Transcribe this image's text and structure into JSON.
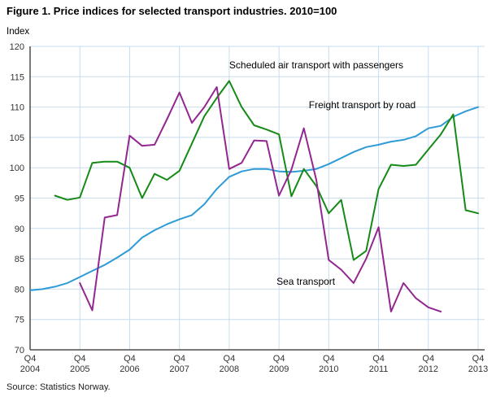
{
  "title": "Figure 1. Price indices for selected transport industries. 2010=100",
  "source": "Source: Statistics Norway.",
  "chart_data": {
    "type": "line",
    "title": "Price indices for selected transport industries. 2010=100",
    "xlabel": "",
    "ylabel": "Index",
    "ylim": [
      70,
      120
    ],
    "ytick_step": 5,
    "grid": true,
    "grid_color": "#c8dcec",
    "axis_color": "#4d4d4d",
    "legend_position": "inline-annotations",
    "x_unit": "quarter",
    "x_range": [
      "Q4 2004",
      "Q4 2013"
    ],
    "x_count": 37,
    "x_tick_every": 4,
    "x_tick_labels": [
      [
        "Q4",
        "2004"
      ],
      [
        "Q4",
        "2005"
      ],
      [
        "Q4",
        "2006"
      ],
      [
        "Q4",
        "2007"
      ],
      [
        "Q4",
        "2008"
      ],
      [
        "Q4",
        "2009"
      ],
      [
        "Q4",
        "2010"
      ],
      [
        "Q4",
        "2011"
      ],
      [
        "Q4",
        "2012"
      ],
      [
        "Q4",
        "2013"
      ]
    ],
    "series": [
      {
        "id": "road",
        "name": "Freight transport by road",
        "color": "#2e9bd6",
        "values": [
          79.8,
          80.0,
          80.4,
          81.0,
          82.0,
          83.0,
          84.0,
          85.2,
          86.5,
          88.5,
          89.7,
          90.7,
          91.5,
          92.2,
          94.0,
          96.5,
          98.5,
          99.4,
          99.8,
          99.8,
          99.4,
          99.3,
          99.5,
          99.8,
          100.6,
          101.6,
          102.6,
          103.4,
          103.8,
          104.3,
          104.6,
          105.2,
          106.5,
          106.9,
          108.4,
          109.3,
          110.0
        ]
      },
      {
        "id": "air",
        "name": "Scheduled air transport with passengers",
        "color": "#168a16",
        "values": [
          null,
          null,
          95.4,
          94.7,
          95.1,
          100.8,
          101.0,
          101.0,
          100.0,
          95.0,
          99.0,
          98.0,
          99.5,
          104.0,
          108.5,
          111.5,
          114.3,
          110.0,
          107.0,
          106.3,
          105.5,
          95.3,
          99.8,
          97.0,
          92.5,
          94.7,
          84.8,
          86.3,
          96.5,
          100.5,
          100.3,
          100.5,
          103.0,
          105.5,
          108.8,
          93.0,
          92.5
        ]
      },
      {
        "id": "sea",
        "name": "Sea transport",
        "color": "#93278f",
        "values": [
          null,
          null,
          null,
          null,
          81.0,
          76.5,
          91.8,
          92.2,
          105.3,
          103.6,
          103.8,
          108.0,
          112.4,
          107.4,
          110.0,
          113.3,
          99.8,
          100.8,
          104.5,
          104.4,
          95.4,
          99.7,
          106.5,
          98.0,
          84.8,
          83.2,
          81.0,
          85.0,
          90.2,
          76.3,
          81.0,
          78.5,
          77.0,
          76.3,
          null,
          null,
          null
        ]
      }
    ],
    "annotations": [
      {
        "id": "air",
        "text": "Scheduled air transport with passengers",
        "x": 16.0,
        "y": 116.4,
        "anchor": "start"
      },
      {
        "id": "road",
        "text": "Freight transport by road",
        "x": 22.4,
        "y": 109.8,
        "anchor": "start"
      },
      {
        "id": "sea",
        "text": "Sea transport",
        "x": 19.8,
        "y": 80.7,
        "anchor": "start"
      }
    ]
  }
}
